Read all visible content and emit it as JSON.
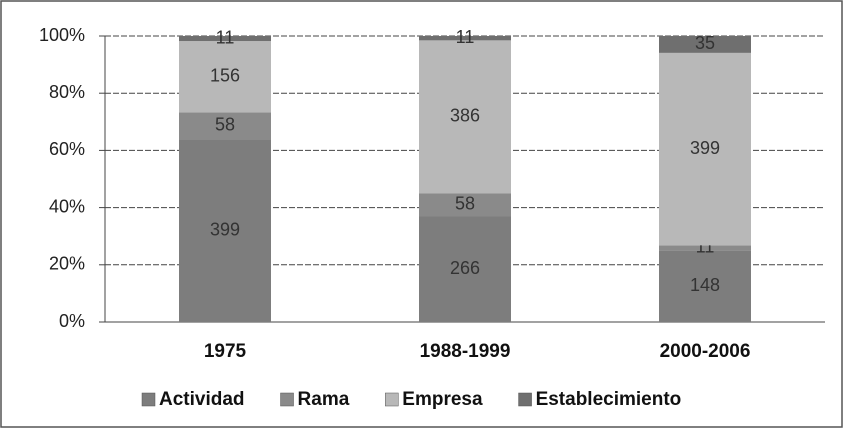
{
  "chart_data": {
    "type": "bar",
    "stacking": "percent",
    "categories": [
      "1975",
      "1988-1999",
      "2000-2006"
    ],
    "series": [
      {
        "name": "Actividad",
        "color": "#7d7d7d",
        "values": [
          399,
          266,
          148
        ]
      },
      {
        "name": "Rama",
        "color": "#8a8a8a",
        "values": [
          58,
          58,
          11
        ]
      },
      {
        "name": "Empresa",
        "color": "#b8b8b8",
        "values": [
          156,
          386,
          399
        ]
      },
      {
        "name": "Establecimiento",
        "color": "#6f6f6f",
        "values": [
          11,
          11,
          35
        ]
      }
    ],
    "ylim": [
      0,
      100
    ],
    "yticks": [
      {
        "value": 0,
        "label": "0%"
      },
      {
        "value": 20,
        "label": "20%"
      },
      {
        "value": 40,
        "label": "40%"
      },
      {
        "value": 60,
        "label": "60%"
      },
      {
        "value": 80,
        "label": "80%"
      },
      {
        "value": 100,
        "label": "100%"
      }
    ],
    "grid": true,
    "legend": "bottom"
  }
}
